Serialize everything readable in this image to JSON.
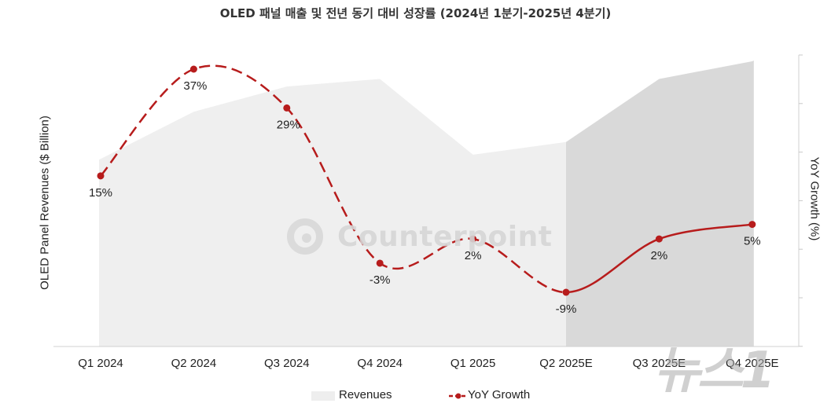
{
  "chart_data": {
    "type": "line",
    "title": "OLED 패널 매출 및 전년 동기 대비 성장률 (2024년 1분기-2025년 4분기)",
    "ylabel_left": "OLED Panel Revenues ($ Billion)",
    "ylabel_right": "YoY Growth (%)",
    "categories": [
      "Q1 2024",
      "Q2 2024",
      "Q3 2024",
      "Q4 2024",
      "Q1 2025",
      "Q2 2025E",
      "Q3 2025E",
      "Q4 2025E"
    ],
    "series": [
      {
        "name": "Revenues",
        "kind": "area",
        "values": [
          10.4,
          12.3,
          13.3,
          13.6,
          10.6,
          11.1,
          13.6,
          14.3
        ],
        "color": "#efefef",
        "forecast_color": "#d9d9d9",
        "forecast_from": "Q2 2025E"
      },
      {
        "name": "YoY Growth",
        "kind": "line",
        "values": [
          15,
          37,
          29,
          -3,
          2,
          -9,
          2,
          5
        ],
        "labels": [
          "15%",
          "37%",
          "29%",
          "-3%",
          "2%",
          "-9%",
          "2%",
          "5%"
        ],
        "color": "#b71c1c",
        "dashed_until": "Q2 2025E"
      }
    ],
    "legend": [
      "Revenues",
      "YoY Growth"
    ],
    "legend_position": "bottom",
    "watermark": "Counterpoint",
    "source_mark": "뉴스1"
  }
}
